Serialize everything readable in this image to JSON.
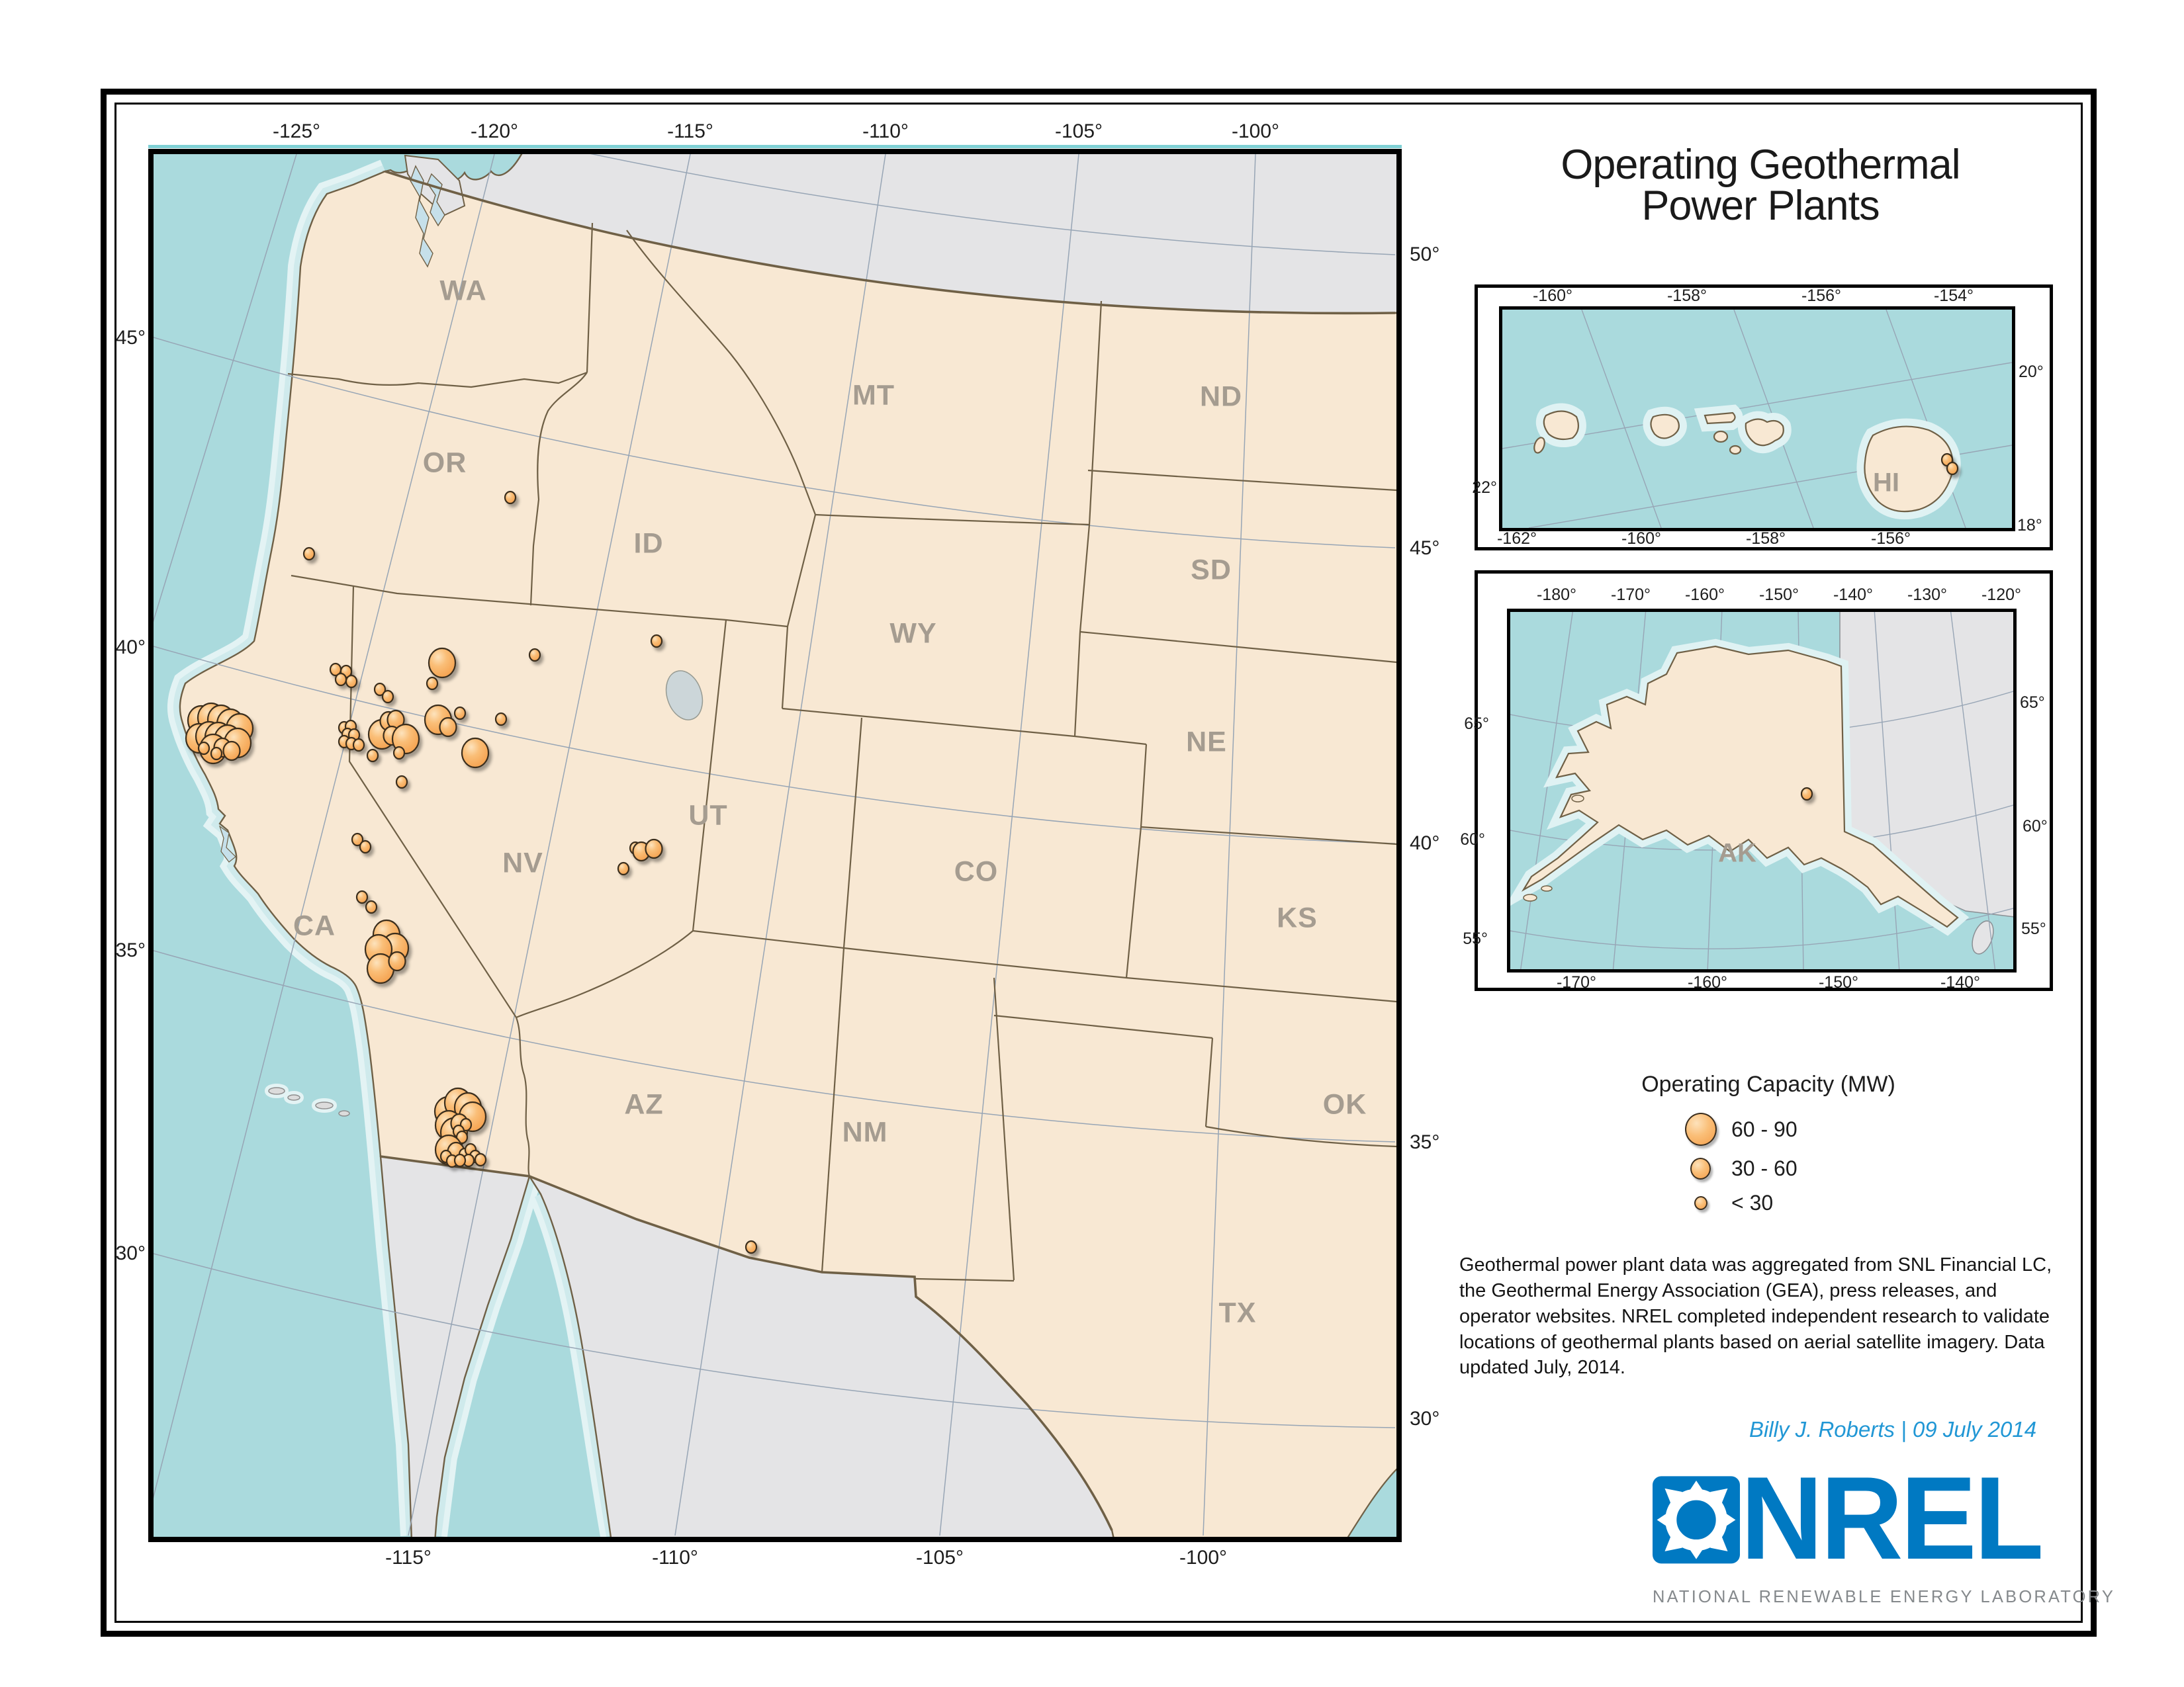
{
  "title": {
    "line1": "Operating Geothermal",
    "line2": "Power Plants"
  },
  "main_map": {
    "axis": {
      "top": [
        "-125°",
        "-120°",
        "-115°",
        "-110°",
        "-105°",
        "-100°"
      ],
      "bottom": [
        "-115°",
        "-110°",
        "-105°",
        "-100°"
      ],
      "left": [
        "45°",
        "40°",
        "35°",
        "30°"
      ],
      "right": [
        "50°",
        "45°",
        "40°",
        "35°",
        "30°"
      ]
    },
    "states": [
      "WA",
      "OR",
      "ID",
      "MT",
      "ND",
      "SD",
      "WY",
      "NE",
      "NV",
      "UT",
      "CA",
      "CO",
      "KS",
      "AZ",
      "NM",
      "OK",
      "TX"
    ]
  },
  "insets": {
    "hawaii": {
      "label": "HI",
      "axis": {
        "top": [
          "-160°",
          "-158°",
          "-156°",
          "-154°"
        ],
        "bottom": [
          "-162°",
          "-160°",
          "-158°",
          "-156°"
        ],
        "left": [
          "22°"
        ],
        "right": [
          "20°",
          "18°"
        ]
      }
    },
    "alaska": {
      "label": "AK",
      "axis": {
        "top": [
          "-180°",
          "-170°",
          "-160°",
          "-150°",
          "-140°",
          "-130°",
          "-120°"
        ],
        "bottom": [
          "-170°",
          "-160°",
          "-150°",
          "-140°"
        ],
        "left": [
          "65°",
          "60°",
          "55°"
        ],
        "right": [
          "65°",
          "60°",
          "55°"
        ]
      }
    }
  },
  "legend": {
    "title": "Operating Capacity (MW)",
    "items": [
      {
        "label": "60 - 90",
        "size": "L"
      },
      {
        "label": "30 - 60",
        "size": "M"
      },
      {
        "label": "< 30",
        "size": "S"
      }
    ]
  },
  "source_text": "Geothermal power plant data was aggregated from  SNL Financial LC, the Geothermal Energy Association (GEA), press releases, and operator websites.  NREL completed independent research to validate locations of geothermal plants based on aerial satellite imagery.  Data updated July, 2014.",
  "credit": "Billy J. Roberts | 09 July 2014",
  "logo": {
    "wordmark": "NREL",
    "tagline": "NATIONAL RENEWABLE ENERGY LABORATORY"
  },
  "colors": {
    "plant_fill": "#F9B167",
    "plant_stroke": "#3a2d1e",
    "ocean": "#aadadd",
    "land_us": "#f8e8d3",
    "land_foreign": "#e4e4e6",
    "border_brown": "#6f6046",
    "graticule": "#97a5b5",
    "state_label": "#a59c90",
    "nrel_blue": "#0079C2",
    "credit_blue": "#2197d5"
  },
  "chart_data": {
    "type": "map-points",
    "units": "MW",
    "size_classes": {
      "L": "60 - 90",
      "M": "30 - 60",
      "S": "< 30"
    },
    "main_points": [
      [
        72,
        856,
        "L"
      ],
      [
        87,
        852,
        "L"
      ],
      [
        102,
        855,
        "L"
      ],
      [
        116,
        861,
        "L"
      ],
      [
        130,
        868,
        "L"
      ],
      [
        69,
        883,
        "L"
      ],
      [
        84,
        880,
        "L"
      ],
      [
        98,
        881,
        "L"
      ],
      [
        112,
        885,
        "L"
      ],
      [
        127,
        890,
        "L"
      ],
      [
        90,
        899,
        "L"
      ],
      [
        104,
        897,
        "M"
      ],
      [
        118,
        902,
        "M"
      ],
      [
        76,
        898,
        "S"
      ],
      [
        95,
        906,
        "S"
      ],
      [
        235,
        604,
        "S"
      ],
      [
        539,
        519,
        "S"
      ],
      [
        275,
        779,
        "S"
      ],
      [
        291,
        782,
        "S"
      ],
      [
        283,
        794,
        "S"
      ],
      [
        299,
        797,
        "S"
      ],
      [
        342,
        809,
        "S"
      ],
      [
        354,
        820,
        "S"
      ],
      [
        436,
        769,
        "L"
      ],
      [
        421,
        800,
        "S"
      ],
      [
        576,
        757,
        "S"
      ],
      [
        760,
        736,
        "S"
      ],
      [
        525,
        854,
        "S"
      ],
      [
        463,
        845,
        "S"
      ],
      [
        430,
        855,
        "L"
      ],
      [
        445,
        866,
        "M"
      ],
      [
        345,
        877,
        "L"
      ],
      [
        355,
        857,
        "M"
      ],
      [
        366,
        855,
        "M"
      ],
      [
        360,
        879,
        "M"
      ],
      [
        381,
        884,
        "L"
      ],
      [
        371,
        905,
        "S"
      ],
      [
        331,
        909,
        "S"
      ],
      [
        288,
        867,
        "S"
      ],
      [
        298,
        865,
        "S"
      ],
      [
        293,
        877,
        "S"
      ],
      [
        303,
        878,
        "S"
      ],
      [
        288,
        888,
        "S"
      ],
      [
        299,
        891,
        "S"
      ],
      [
        310,
        893,
        "S"
      ],
      [
        375,
        949,
        "S"
      ],
      [
        486,
        905,
        "L"
      ],
      [
        308,
        1036,
        "S"
      ],
      [
        320,
        1047,
        "S"
      ],
      [
        315,
        1123,
        "S"
      ],
      [
        329,
        1138,
        "S"
      ],
      [
        352,
        1180,
        "L"
      ],
      [
        365,
        1200,
        "L"
      ],
      [
        340,
        1202,
        "L"
      ],
      [
        343,
        1231,
        "L"
      ],
      [
        368,
        1220,
        "M"
      ],
      [
        728,
        1049,
        "S"
      ],
      [
        737,
        1054,
        "M"
      ],
      [
        756,
        1050,
        "M"
      ],
      [
        710,
        1080,
        "S"
      ],
      [
        903,
        1652,
        "S"
      ],
      [
        452,
        1458,
        "M"
      ],
      [
        445,
        1447,
        "L"
      ],
      [
        460,
        1434,
        "L"
      ],
      [
        475,
        1441,
        "L"
      ],
      [
        482,
        1455,
        "L"
      ],
      [
        446,
        1468,
        "L"
      ],
      [
        454,
        1479,
        "L"
      ],
      [
        462,
        1465,
        "M"
      ],
      [
        472,
        1467,
        "S"
      ],
      [
        461,
        1477,
        "S"
      ],
      [
        466,
        1486,
        "S"
      ],
      [
        446,
        1505,
        "L"
      ],
      [
        457,
        1508,
        "M"
      ],
      [
        442,
        1515,
        "S"
      ],
      [
        451,
        1522,
        "S"
      ],
      [
        470,
        1512,
        "S"
      ],
      [
        479,
        1505,
        "S"
      ],
      [
        486,
        1515,
        "S"
      ],
      [
        494,
        1520,
        "S"
      ],
      [
        476,
        1521,
        "S"
      ],
      [
        463,
        1521,
        "S"
      ]
    ],
    "hawaii_points": [
      [
        672,
        227,
        "S"
      ],
      [
        680,
        240,
        "S"
      ]
    ],
    "alaska_points": [
      [
        448,
        275,
        "S"
      ]
    ]
  }
}
